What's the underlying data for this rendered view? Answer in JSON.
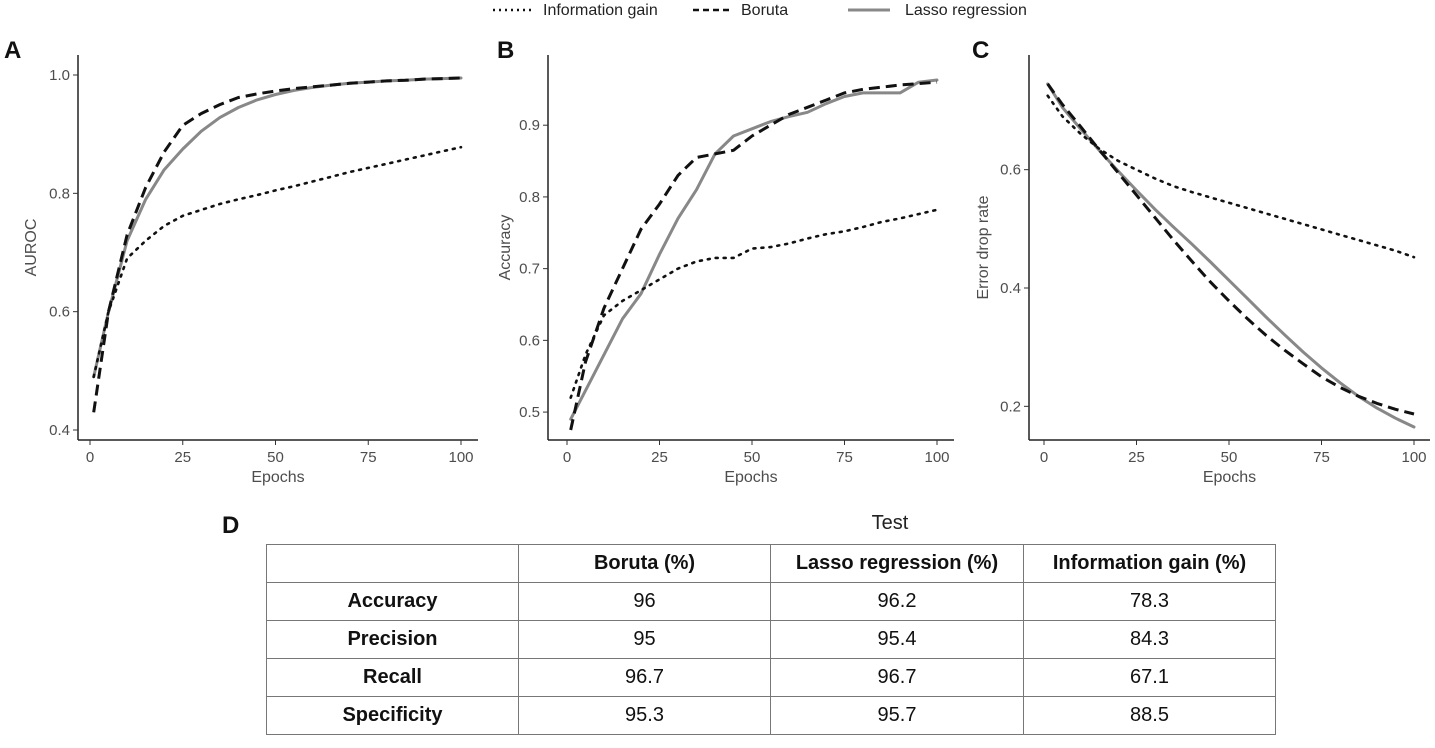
{
  "legend": [
    {
      "label": "Information gain",
      "style": "dotted",
      "color": "#111111"
    },
    {
      "label": "Boruta",
      "style": "dashed",
      "color": "#111111"
    },
    {
      "label": "Lasso regression",
      "style": "solid",
      "color": "#888888"
    }
  ],
  "chart_data": [
    {
      "panel": "A",
      "type": "line",
      "xlabel": "Epochs",
      "ylabel": "AUROC",
      "xlim": [
        0,
        100
      ],
      "ylim": [
        0.4,
        1.0
      ],
      "xticks": [
        0,
        25,
        50,
        75,
        100
      ],
      "xtick_labels": [
        "0",
        "25",
        "50",
        "75",
        "100"
      ],
      "yticks": [
        0.4,
        0.6,
        0.8,
        1.0
      ],
      "ytick_labels": [
        "0.4",
        "0.6",
        "0.8",
        "1.0"
      ],
      "x": [
        1,
        5,
        10,
        15,
        20,
        25,
        30,
        35,
        40,
        45,
        50,
        55,
        60,
        65,
        70,
        75,
        80,
        85,
        90,
        95,
        100
      ],
      "series": [
        {
          "name": "Information gain",
          "values": [
            0.49,
            0.6,
            0.69,
            0.72,
            0.745,
            0.762,
            0.772,
            0.782,
            0.79,
            0.797,
            0.805,
            0.812,
            0.82,
            0.828,
            0.836,
            0.843,
            0.85,
            0.857,
            0.864,
            0.871,
            0.878
          ]
        },
        {
          "name": "Boruta",
          "values": [
            0.43,
            0.6,
            0.73,
            0.81,
            0.87,
            0.915,
            0.935,
            0.95,
            0.962,
            0.968,
            0.973,
            0.977,
            0.98,
            0.983,
            0.986,
            0.988,
            0.99,
            0.991,
            0.993,
            0.994,
            0.995
          ]
        },
        {
          "name": "Lasso regression",
          "values": [
            0.49,
            0.6,
            0.72,
            0.79,
            0.84,
            0.875,
            0.905,
            0.928,
            0.945,
            0.958,
            0.967,
            0.974,
            0.979,
            0.983,
            0.986,
            0.988,
            0.99,
            0.991,
            0.993,
            0.994,
            0.995
          ]
        }
      ]
    },
    {
      "panel": "B",
      "type": "line",
      "xlabel": "Epochs",
      "ylabel": "Accuracy",
      "xlim": [
        0,
        100
      ],
      "ylim": [
        0.475,
        0.97
      ],
      "xticks": [
        0,
        25,
        50,
        75,
        100
      ],
      "xtick_labels": [
        "0",
        "25",
        "50",
        "75",
        "100"
      ],
      "yticks": [
        0.5,
        0.6,
        0.7,
        0.8,
        0.9
      ],
      "ytick_labels": [
        "0.5",
        "0.6",
        "0.7",
        "0.8",
        "0.9"
      ],
      "x": [
        1,
        5,
        10,
        15,
        20,
        25,
        30,
        35,
        40,
        45,
        50,
        55,
        60,
        65,
        70,
        75,
        80,
        85,
        90,
        95,
        100
      ],
      "series": [
        {
          "name": "Information gain",
          "values": [
            0.52,
            0.58,
            0.635,
            0.655,
            0.67,
            0.685,
            0.7,
            0.71,
            0.715,
            0.715,
            0.728,
            0.73,
            0.735,
            0.742,
            0.748,
            0.752,
            0.758,
            0.765,
            0.77,
            0.776,
            0.782
          ]
        },
        {
          "name": "Boruta",
          "values": [
            0.475,
            0.57,
            0.645,
            0.7,
            0.755,
            0.79,
            0.83,
            0.855,
            0.86,
            0.865,
            0.885,
            0.9,
            0.915,
            0.925,
            0.935,
            0.945,
            0.95,
            0.953,
            0.956,
            0.958,
            0.96
          ]
        },
        {
          "name": "Lasso regression",
          "values": [
            0.49,
            0.53,
            0.58,
            0.63,
            0.665,
            0.72,
            0.77,
            0.81,
            0.86,
            0.885,
            0.895,
            0.905,
            0.912,
            0.918,
            0.93,
            0.94,
            0.945,
            0.945,
            0.945,
            0.96,
            0.963
          ]
        }
      ]
    },
    {
      "panel": "C",
      "type": "line",
      "xlabel": "Epochs",
      "ylabel": "Error drop rate",
      "xlim": [
        0,
        100
      ],
      "ylim": [
        0.16,
        0.76
      ],
      "xticks": [
        0,
        25,
        50,
        75,
        100
      ],
      "xtick_labels": [
        "0",
        "25",
        "50",
        "75",
        "100"
      ],
      "yticks": [
        0.2,
        0.4,
        0.6
      ],
      "ytick_labels": [
        "0.2",
        "0.4",
        "0.6"
      ],
      "x": [
        1,
        5,
        10,
        15,
        20,
        25,
        30,
        35,
        40,
        45,
        50,
        55,
        60,
        65,
        70,
        75,
        80,
        85,
        90,
        95,
        100
      ],
      "series": [
        {
          "name": "Information gain",
          "values": [
            0.725,
            0.69,
            0.66,
            0.635,
            0.615,
            0.6,
            0.585,
            0.572,
            0.562,
            0.553,
            0.544,
            0.535,
            0.526,
            0.517,
            0.508,
            0.499,
            0.49,
            0.481,
            0.472,
            0.463,
            0.452
          ]
        },
        {
          "name": "Boruta",
          "values": [
            0.745,
            0.71,
            0.672,
            0.633,
            0.595,
            0.557,
            0.519,
            0.481,
            0.445,
            0.41,
            0.378,
            0.348,
            0.32,
            0.295,
            0.272,
            0.25,
            0.232,
            0.217,
            0.205,
            0.195,
            0.187
          ]
        },
        {
          "name": "Lasso regression",
          "values": [
            0.745,
            0.705,
            0.668,
            0.632,
            0.598,
            0.565,
            0.533,
            0.503,
            0.474,
            0.444,
            0.413,
            0.382,
            0.351,
            0.321,
            0.292,
            0.265,
            0.24,
            0.217,
            0.197,
            0.18,
            0.165
          ]
        }
      ]
    },
    {
      "panel": "D",
      "type": "table",
      "title": "Test",
      "columns": [
        "",
        "Boruta (%)",
        "Lasso regression (%)",
        "Information gain (%)"
      ],
      "rows": [
        {
          "label": "Accuracy",
          "values": [
            "96",
            "96.2",
            "78.3"
          ]
        },
        {
          "label": "Precision",
          "values": [
            "95",
            "95.4",
            "84.3"
          ]
        },
        {
          "label": "Recall",
          "values": [
            "96.7",
            "96.7",
            "67.1"
          ]
        },
        {
          "label": "Specificity",
          "values": [
            "95.3",
            "95.7",
            "88.5"
          ]
        }
      ]
    }
  ]
}
